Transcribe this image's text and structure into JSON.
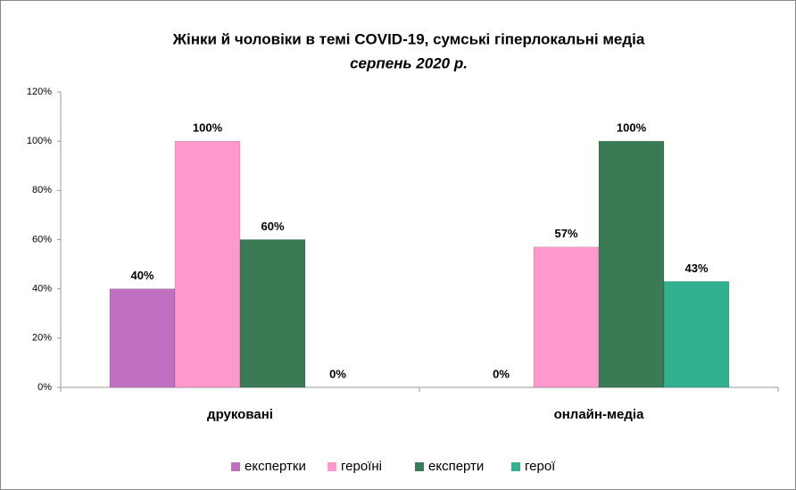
{
  "chart_data": {
    "type": "bar",
    "title": "Жінки й чоловіки  в темі COVID-19, сумські гіперлокальні  медіа",
    "subtitle": "серпень 2020 р.",
    "categories": [
      "друковані",
      "онлайн-медіа"
    ],
    "series": [
      {
        "name": "експертки",
        "color": "#c070c0",
        "values": [
          40,
          0
        ],
        "value_labels": [
          "40%",
          "0%"
        ]
      },
      {
        "name": "героїні",
        "color": "#ff99cc",
        "values": [
          100,
          57
        ],
        "value_labels": [
          "100%",
          "57%"
        ]
      },
      {
        "name": "експерти",
        "color": "#3a7a55",
        "values": [
          60,
          100
        ],
        "value_labels": [
          "60%",
          "100%"
        ]
      },
      {
        "name": "герої",
        "color": "#33b08f",
        "values": [
          0,
          43
        ],
        "value_labels": [
          "0%",
          "43%"
        ]
      }
    ],
    "ylim": [
      0,
      120
    ],
    "yticks": [
      {
        "value": 0,
        "label": "0%"
      },
      {
        "value": 20,
        "label": "20%"
      },
      {
        "value": 40,
        "label": "40%"
      },
      {
        "value": 60,
        "label": "60%"
      },
      {
        "value": 80,
        "label": "80%"
      },
      {
        "value": 100,
        "label": "100%"
      },
      {
        "value": 120,
        "label": "120%"
      }
    ],
    "legend": "bottom"
  }
}
